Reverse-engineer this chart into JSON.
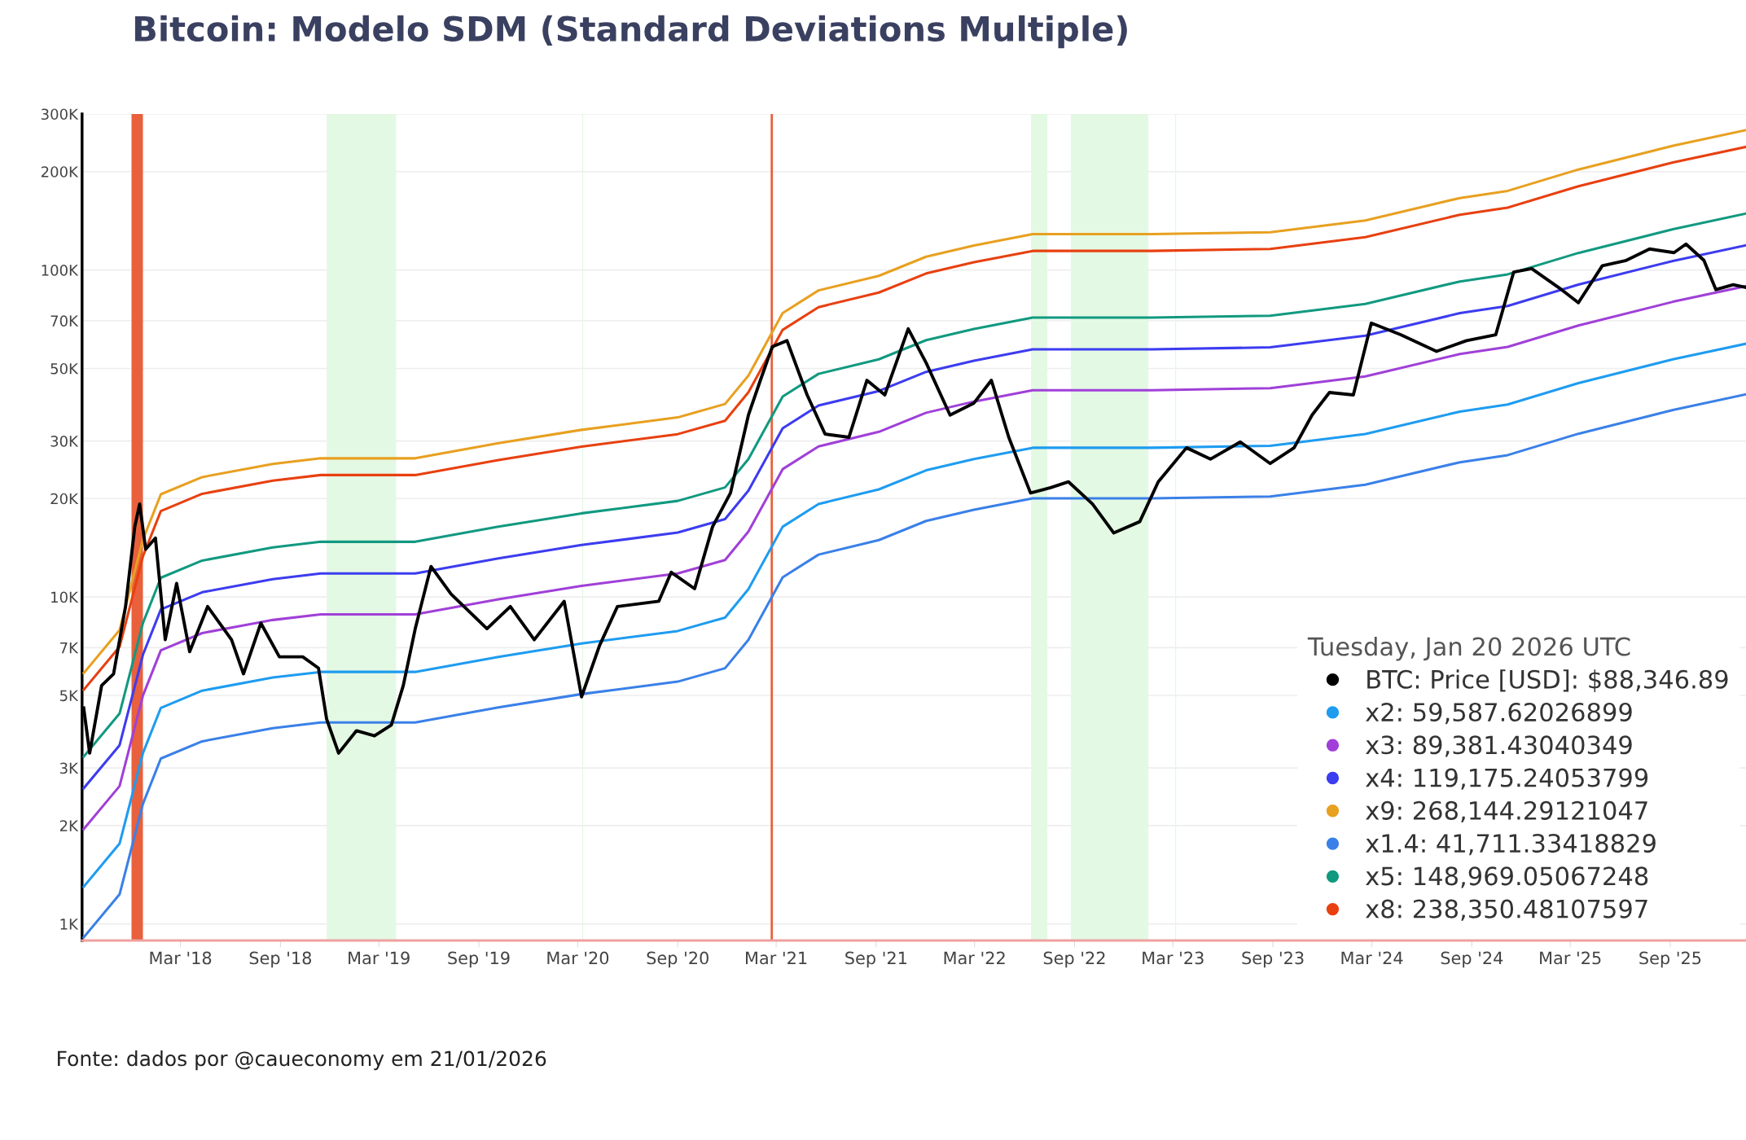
{
  "chart_data": {
    "type": "line",
    "title": "Bitcoin: Modelo SDM (Standard Deviations Multiple)",
    "annotations": [
      "Fonte: dados por @caueconomy em 21/01/2026"
    ],
    "legend_title": "Tuesday, Jan 20 2026 UTC",
    "legend": "bottom right",
    "grid": "y",
    "log": "y",
    "marker": "none",
    "line_style": "solid",
    "xlim": [
      "2017-09-01",
      "2026-01-20"
    ],
    "xticks": [
      {
        "value": "2018-03-01",
        "label": "Mar '18"
      },
      {
        "value": "2018-09-01",
        "label": "Sep '18"
      },
      {
        "value": "2019-03-01",
        "label": "Mar '19"
      },
      {
        "value": "2019-09-01",
        "label": "Sep '19"
      },
      {
        "value": "2020-03-01",
        "label": "Mar '20"
      },
      {
        "value": "2020-09-01",
        "label": "Sep '20"
      },
      {
        "value": "2021-03-01",
        "label": "Mar '21"
      },
      {
        "value": "2021-09-01",
        "label": "Sep '21"
      },
      {
        "value": "2022-03-01",
        "label": "Mar '22"
      },
      {
        "value": "2022-09-01",
        "label": "Sep '22"
      },
      {
        "value": "2023-03-01",
        "label": "Mar '23"
      },
      {
        "value": "2023-09-01",
        "label": "Sep '23"
      },
      {
        "value": "2024-03-01",
        "label": "Mar '24"
      },
      {
        "value": "2024-09-01",
        "label": "Sep '24"
      },
      {
        "value": "2025-03-01",
        "label": "Mar '25"
      },
      {
        "value": "2025-09-01",
        "label": "Sep '25"
      }
    ],
    "ylim": [
      890,
      300000
    ],
    "yticks": [
      {
        "value": 1000,
        "label": "1K"
      },
      {
        "value": 2000,
        "label": "2K"
      },
      {
        "value": 3000,
        "label": "3K"
      },
      {
        "value": 5000,
        "label": "5K"
      },
      {
        "value": 7000,
        "label": "7K"
      },
      {
        "value": 10000,
        "label": "10K"
      },
      {
        "value": 20000,
        "label": "20K"
      },
      {
        "value": 30000,
        "label": "30K"
      },
      {
        "value": 50000,
        "label": "50K"
      },
      {
        "value": 70000,
        "label": "70K"
      },
      {
        "value": 100000,
        "label": "100K"
      },
      {
        "value": 200000,
        "label": "200K"
      },
      {
        "value": 300000,
        "label": "300K"
      }
    ],
    "bands": [
      {
        "axis": "x",
        "from": "2017-12-01",
        "to": "2017-12-22",
        "color": "#e8603c"
      },
      {
        "axis": "x",
        "from": "2018-11-25",
        "to": "2019-04-02",
        "color": "#e3f9e3"
      },
      {
        "axis": "x",
        "from": "2020-03-09",
        "to": "2020-03-11",
        "color": "#e3f9e3"
      },
      {
        "axis": "x",
        "from": "2022-06-13",
        "to": "2022-07-13",
        "color": "#e3f9e3"
      },
      {
        "axis": "x",
        "from": "2022-08-25",
        "to": "2023-01-15",
        "color": "#e3f9e3"
      },
      {
        "axis": "x",
        "from": "2023-03-05",
        "to": "2023-03-07",
        "color": "#e3f9e3"
      }
    ],
    "ref_lines": [
      {
        "axis": "x",
        "value": "2021-02-21",
        "color": "#e8603c",
        "line_style": "solid"
      }
    ],
    "x": [
      "2017-09-04",
      "2017-11-09",
      "2017-12-22",
      "2018-01-24",
      "2018-04-10",
      "2018-08-18",
      "2018-11-14",
      "2019-05-07",
      "2019-10-07",
      "2020-03-08",
      "2020-09-01",
      "2020-11-27",
      "2021-01-09",
      "2021-03-13",
      "2021-05-18",
      "2021-09-06",
      "2021-12-02",
      "2022-02-28",
      "2022-06-16",
      "2023-01-21",
      "2023-08-27",
      "2024-02-18",
      "2024-08-10",
      "2024-11-06",
      "2025-03-16",
      "2025-09-06",
      "2026-01-20"
    ],
    "series": [
      {
        "name": "BTC: Price [USD]: $88,346.89",
        "color": "#000000",
        "x": [
          "2017-09-04",
          "2017-09-15",
          "2017-10-07",
          "2017-10-29",
          "2017-11-20",
          "2017-12-07",
          "2017-12-16",
          "2017-12-27",
          "2018-01-14",
          "2018-02-01",
          "2018-02-22",
          "2018-03-18",
          "2018-04-20",
          "2018-06-03",
          "2018-06-25",
          "2018-07-27",
          "2018-08-30",
          "2018-10-12",
          "2018-11-10",
          "2018-11-25",
          "2018-12-17",
          "2019-01-19",
          "2019-02-21",
          "2019-03-24",
          "2019-04-15",
          "2019-05-07",
          "2019-06-05",
          "2019-07-12",
          "2019-09-16",
          "2019-10-29",
          "2019-12-12",
          "2020-02-05",
          "2020-03-08",
          "2020-04-10",
          "2020-05-13",
          "2020-07-28",
          "2020-08-20",
          "2020-10-02",
          "2020-11-04",
          "2020-12-07",
          "2021-01-09",
          "2021-01-31",
          "2021-02-22",
          "2021-03-21",
          "2021-04-27",
          "2021-05-30",
          "2021-07-13",
          "2021-08-15",
          "2021-09-17",
          "2021-10-30",
          "2021-12-02",
          "2022-01-15",
          "2022-02-28",
          "2022-04-01",
          "2022-05-03",
          "2022-06-12",
          "2022-07-19",
          "2022-08-21",
          "2022-10-04",
          "2022-11-12",
          "2022-12-30",
          "2023-02-02",
          "2023-03-26",
          "2023-05-09",
          "2023-07-03",
          "2023-08-27",
          "2023-10-10",
          "2023-11-12",
          "2023-12-14",
          "2024-01-27",
          "2024-02-29",
          "2024-04-23",
          "2024-06-28",
          "2024-08-22",
          "2024-10-15",
          "2024-11-17",
          "2024-12-20",
          "2025-02-13",
          "2025-03-16",
          "2025-04-29",
          "2025-06-12",
          "2025-07-25",
          "2025-09-08",
          "2025-09-30",
          "2025-11-02",
          "2025-11-24",
          "2025-12-26",
          "2026-01-20"
        ],
        "values": [
          4580,
          3330,
          5360,
          5820,
          9350,
          16400,
          19250,
          14000,
          15150,
          7400,
          11000,
          6800,
          9350,
          7400,
          5820,
          8320,
          6560,
          6560,
          6060,
          4230,
          3330,
          3900,
          3760,
          4060,
          5360,
          8000,
          12400,
          10200,
          8000,
          9350,
          7400,
          9700,
          4950,
          7100,
          9350,
          9700,
          11900,
          10600,
          16400,
          20800,
          36000,
          46000,
          58300,
          60800,
          41500,
          31500,
          30800,
          46000,
          41500,
          66100,
          52000,
          36000,
          39200,
          46000,
          30800,
          20800,
          21600,
          22500,
          19250,
          15700,
          17000,
          22500,
          28600,
          26400,
          29800,
          25600,
          28600,
          36000,
          42200,
          41500,
          68800,
          63400,
          56400,
          60800,
          63400,
          98600,
          101000,
          87100,
          79400,
          103000,
          107000,
          116000,
          113000,
          120000,
          107000,
          87100,
          90200,
          88346.89
        ]
      },
      {
        "name": "x2: 59,587.62026899",
        "color": "#1e9cf0",
        "values": [
          1300,
          1760,
          3330,
          4580,
          5170,
          5670,
          5900,
          5900,
          6560,
          7210,
          7870,
          8650,
          10570,
          16400,
          19250,
          21330,
          24400,
          26400,
          28600,
          28600,
          29000,
          31500,
          36900,
          38800,
          45100,
          53300,
          59587.62
        ]
      },
      {
        "name": "x3: 89,381.43040349",
        "color": "#a040d8",
        "values": [
          1950,
          2640,
          4995,
          6870,
          7755,
          8505,
          8850,
          8850,
          9840,
          10815,
          11805,
          12975,
          15855,
          24600,
          28875,
          31995,
          36600,
          39600,
          42900,
          42900,
          43500,
          47250,
          55350,
          58200,
          67650,
          79950,
          89381.43
        ]
      },
      {
        "name": "x4: 119,175.24053799",
        "color": "#3c3cf0",
        "values": [
          2600,
          3520,
          6660,
          9160,
          10340,
          11340,
          11800,
          11800,
          13120,
          14420,
          15740,
          17300,
          21140,
          32800,
          38500,
          42660,
          48800,
          52800,
          57200,
          57200,
          58000,
          63000,
          73800,
          77600,
          90200,
          106600,
          119175.24
        ]
      },
      {
        "name": "x9: 268,144.29121047",
        "color": "#e8a020",
        "values": [
          5850,
          7920,
          14985,
          20610,
          23265,
          25515,
          26550,
          26550,
          29520,
          32445,
          35415,
          38925,
          47565,
          73800,
          86625,
          95985,
          109800,
          118800,
          128700,
          128700,
          130500,
          141750,
          166050,
          174600,
          202950,
          239850,
          268144.29
        ]
      },
      {
        "name": "x1.4: 41,711.33418829",
        "color": "#3a80e8",
        "values": [
          910,
          1232,
          2331,
          3206,
          3619,
          3969,
          4130,
          4130,
          4592,
          5047,
          5509,
          6055,
          7399,
          11480,
          13475,
          14931,
          17080,
          18480,
          20020,
          20020,
          20300,
          22050,
          25830,
          27160,
          31570,
          37310,
          41711.33
        ]
      },
      {
        "name": "x5: 148,969.05067248",
        "color": "#119980",
        "values": [
          3250,
          4400,
          8325,
          11450,
          12925,
          14175,
          14750,
          14750,
          16400,
          18025,
          19675,
          21625,
          26425,
          41000,
          48125,
          53325,
          61000,
          66000,
          71500,
          71500,
          72500,
          78750,
          92250,
          97000,
          112750,
          133250,
          148969.05
        ]
      },
      {
        "name": "x8: 238,350.48107597",
        "color": "#e84010",
        "values": [
          5200,
          7040,
          13320,
          18320,
          20680,
          22680,
          23600,
          23600,
          26240,
          28840,
          31480,
          34600,
          42280,
          65600,
          77000,
          85320,
          97600,
          105600,
          114400,
          114400,
          116000,
          126000,
          147600,
          155200,
          180400,
          213200,
          238350.48
        ]
      }
    ]
  }
}
